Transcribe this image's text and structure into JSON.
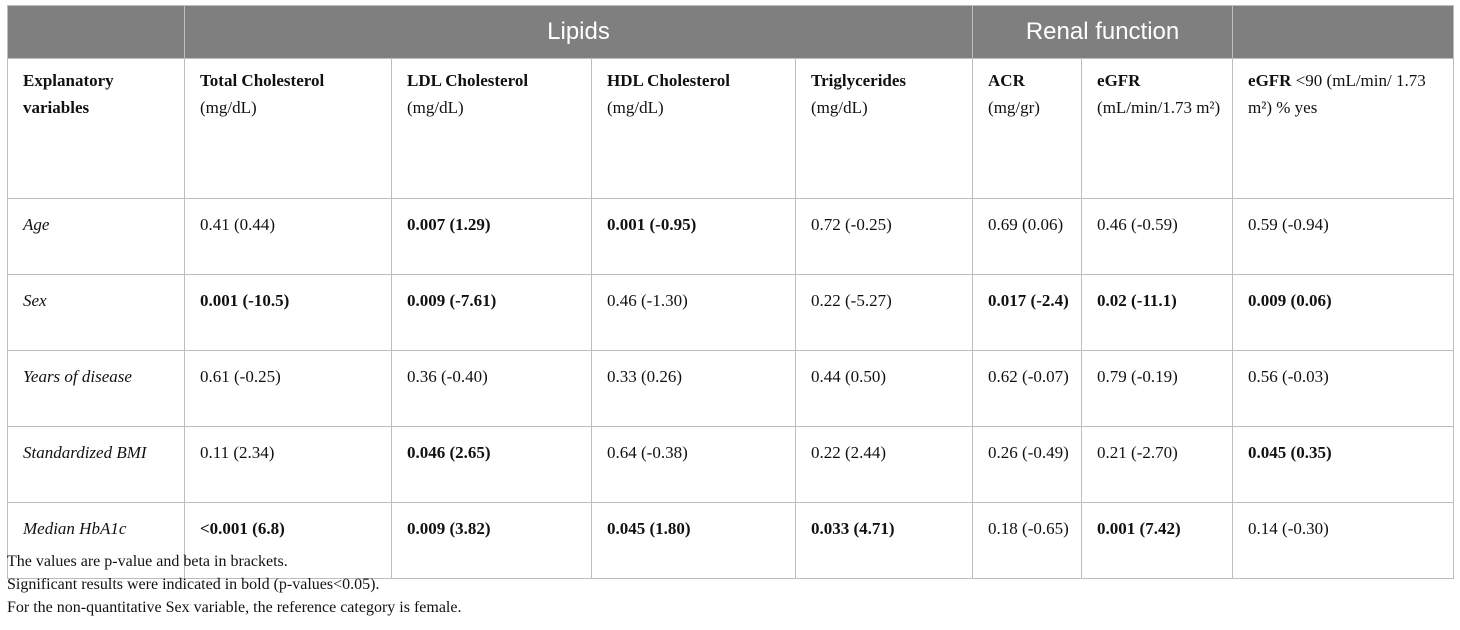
{
  "header_groups": {
    "lipids": "Lipids",
    "renal": "Renal function"
  },
  "columns": {
    "explanatory": {
      "bold": "Explanatory variables",
      "unit": ""
    },
    "total_chol": {
      "bold": "Total Cholesterol",
      "unit": "(mg/dL)"
    },
    "ldl": {
      "bold": "LDL Cholesterol",
      "unit": "(mg/dL)"
    },
    "hdl": {
      "bold": "HDL Cholesterol",
      "unit": "(mg/dL)"
    },
    "trig": {
      "bold": "Triglycerides",
      "unit": "(mg/dL)"
    },
    "acr": {
      "bold": "ACR",
      "unit": "(mg/gr)"
    },
    "egfr": {
      "bold": "eGFR",
      "unit": "(mL/min/1.73 m²)"
    },
    "egfr90": {
      "bold": "eGFR",
      "unit": "<90 (mL/min/ 1.73 m²) % yes"
    }
  },
  "rows": [
    {
      "label": "Age",
      "cells": [
        "0.41 (0.44)",
        "0.007 (1.29)",
        "0.001 (-0.95)",
        "0.72 (-0.25)",
        "0.69 (0.06)",
        "0.46 (-0.59)",
        "0.59 (-0.94)"
      ]
    },
    {
      "label": "Sex",
      "cells": [
        "0.001 (-10.5)",
        "0.009 (-7.61)",
        "0.46 (-1.30)",
        "0.22 (-5.27)",
        "0.017 (-2.4)",
        "0.02 (-11.1)",
        "0.009 (0.06)"
      ]
    },
    {
      "label": "Years of disease",
      "cells": [
        "0.61 (-0.25)",
        "0.36 (-0.40)",
        "0.33 (0.26)",
        "0.44 (0.50)",
        "0.62 (-0.07)",
        "0.79 (-0.19)",
        "0.56 (-0.03)"
      ]
    },
    {
      "label": "Standardized BMI",
      "cells": [
        "0.11 (2.34)",
        "0.046 (2.65)",
        "0.64 (-0.38)",
        "0.22 (2.44)",
        "0.26 (-0.49)",
        "0.21 (-2.70)",
        "0.045 (0.35)"
      ]
    },
    {
      "label": "Median HbA1c",
      "cells": [
        "<0.001 (6.8)",
        "0.009 (3.82)",
        "0.045 (1.80)",
        "0.033 (4.71)",
        "0.18 (-0.65)",
        "0.001 (7.42)",
        "0.14 (-0.30)"
      ]
    }
  ],
  "notes": [
    "The values are p-value and beta in brackets.",
    "Significant results were indicated in bold (p-values<0.05).",
    "For the non-quantitative Sex variable, the reference category is female."
  ]
}
